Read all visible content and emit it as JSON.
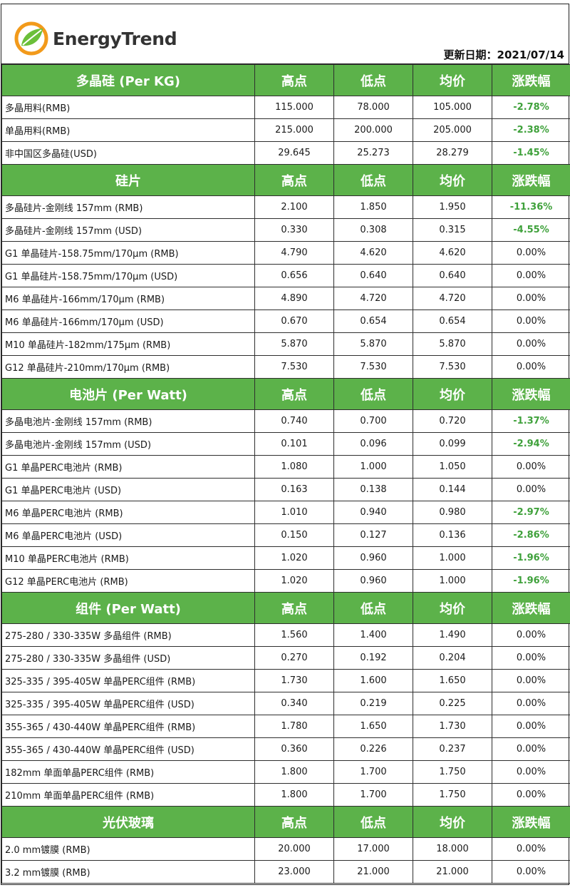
{
  "brand": {
    "name": "EnergyTrend"
  },
  "update": {
    "label": "更新日期：2021/07/14"
  },
  "colors": {
    "header_green": "#5cb24a",
    "negative_green": "#3fa13b",
    "logo_orange": "#f29a1b",
    "logo_green": "#6bbf3a"
  },
  "sections": [
    {
      "title": "多晶硅 (Per KG)",
      "columns": [
        "高点",
        "低点",
        "均价",
        "涨跌幅"
      ],
      "rows": [
        {
          "name": "多晶用料(RMB)",
          "high": "115.000",
          "low": "78.000",
          "avg": "105.000",
          "change": "-2.78%"
        },
        {
          "name": "单晶用料(RMB)",
          "high": "215.000",
          "low": "200.000",
          "avg": "205.000",
          "change": "-2.38%"
        },
        {
          "name": "非中国区多晶硅(USD)",
          "high": "29.645",
          "low": "25.273",
          "avg": "28.279",
          "change": "-1.45%"
        }
      ]
    },
    {
      "title": "硅片",
      "columns": [
        "高点",
        "低点",
        "均价",
        "涨跌幅"
      ],
      "rows": [
        {
          "name": "多晶硅片-金刚线 157mm (RMB)",
          "high": "2.100",
          "low": "1.850",
          "avg": "1.950",
          "change": "-11.36%"
        },
        {
          "name": "多晶硅片-金刚线 157mm (USD)",
          "high": "0.330",
          "low": "0.308",
          "avg": "0.315",
          "change": "-4.55%"
        },
        {
          "name": "G1 单晶硅片-158.75mm/170μm (RMB)",
          "high": "4.790",
          "low": "4.620",
          "avg": "4.620",
          "change": "0.00%"
        },
        {
          "name": "G1 单晶硅片-158.75mm/170μm (USD)",
          "high": "0.656",
          "low": "0.640",
          "avg": "0.640",
          "change": "0.00%"
        },
        {
          "name": "M6 单晶硅片-166mm/170μm (RMB)",
          "high": "4.890",
          "low": "4.720",
          "avg": "4.720",
          "change": "0.00%"
        },
        {
          "name": "M6 单晶硅片-166mm/170μm (USD)",
          "high": "0.670",
          "low": "0.654",
          "avg": "0.654",
          "change": "0.00%"
        },
        {
          "name": "M10 单晶硅片-182mm/175μm (RMB)",
          "high": "5.870",
          "low": "5.870",
          "avg": "5.870",
          "change": "0.00%"
        },
        {
          "name": "G12 单晶硅片-210mm/170μm  (RMB)",
          "high": "7.530",
          "low": "7.530",
          "avg": "7.530",
          "change": "0.00%"
        }
      ]
    },
    {
      "title": "电池片 (Per Watt)",
      "columns": [
        "高点",
        "低点",
        "均价",
        "涨跌幅"
      ],
      "rows": [
        {
          "name": "多晶电池片-金刚线 157mm (RMB)",
          "high": "0.740",
          "low": "0.700",
          "avg": "0.720",
          "change": "-1.37%"
        },
        {
          "name": "多晶电池片-金刚线 157mm (USD)",
          "high": "0.101",
          "low": "0.096",
          "avg": "0.099",
          "change": "-2.94%"
        },
        {
          "name": "G1 单晶PERC电池片 (RMB)",
          "high": "1.080",
          "low": "1.000",
          "avg": "1.050",
          "change": "0.00%"
        },
        {
          "name": "G1 单晶PERC电池片  (USD)",
          "high": "0.163",
          "low": "0.138",
          "avg": "0.144",
          "change": "0.00%"
        },
        {
          "name": "M6 单晶PERC电池片 (RMB)",
          "high": "1.010",
          "low": "0.940",
          "avg": "0.980",
          "change": "-2.97%"
        },
        {
          "name": "M6 单晶PERC电池片 (USD)",
          "high": "0.150",
          "low": "0.127",
          "avg": "0.136",
          "change": "-2.86%"
        },
        {
          "name": "M10 单晶PERC电池片 (RMB)",
          "high": "1.020",
          "low": "0.960",
          "avg": "1.000",
          "change": "-1.96%"
        },
        {
          "name": "G12 单晶PERC电池片 (RMB)",
          "high": "1.020",
          "low": "0.960",
          "avg": "1.000",
          "change": "-1.96%"
        }
      ]
    },
    {
      "title": "组件 (Per Watt)",
      "columns": [
        "高点",
        "低点",
        "均价",
        "涨跌幅"
      ],
      "rows": [
        {
          "name": "275-280 / 330-335W 多晶组件 (RMB)",
          "high": "1.560",
          "low": "1.400",
          "avg": "1.490",
          "change": "0.00%"
        },
        {
          "name": "275-280 / 330-335W 多晶组件 (USD)",
          "high": "0.270",
          "low": "0.192",
          "avg": "0.204",
          "change": "0.00%"
        },
        {
          "name": "325-335 / 395-405W 单晶PERC组件 (RMB)",
          "high": "1.730",
          "low": "1.600",
          "avg": "1.650",
          "change": "0.00%"
        },
        {
          "name": "325-335 / 395-405W 单晶PERC组件 (USD)",
          "high": "0.340",
          "low": "0.219",
          "avg": "0.225",
          "change": "0.00%"
        },
        {
          "name": "355-365 / 430-440W 单晶PERC组件 (RMB)",
          "high": "1.780",
          "low": "1.650",
          "avg": "1.730",
          "change": "0.00%"
        },
        {
          "name": "355-365 / 430-440W 单晶PERC组件 (USD)",
          "high": "0.360",
          "low": "0.226",
          "avg": "0.237",
          "change": "0.00%"
        },
        {
          "name": "182mm 单面单晶PERC组件 (RMB)",
          "high": "1.800",
          "low": "1.700",
          "avg": "1.750",
          "change": "0.00%"
        },
        {
          "name": "210mm 单面单晶PERC组件 (RMB)",
          "high": "1.800",
          "low": "1.700",
          "avg": "1.750",
          "change": "0.00%"
        }
      ]
    },
    {
      "title": "光伏玻璃",
      "columns": [
        "高点",
        "低点",
        "均价",
        "涨跌幅"
      ],
      "rows": [
        {
          "name": "2.0 mm镀膜 (RMB)",
          "high": "20.000",
          "low": "17.000",
          "avg": "18.000",
          "change": "0.00%"
        },
        {
          "name": "3.2 mm镀膜 (RMB)",
          "high": "23.000",
          "low": "21.000",
          "avg": "21.000",
          "change": "0.00%"
        }
      ]
    }
  ]
}
